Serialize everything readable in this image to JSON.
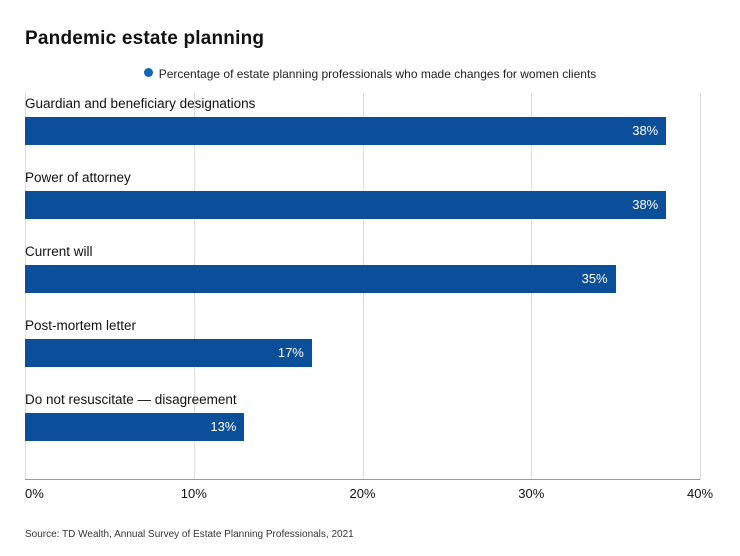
{
  "title": "Pandemic estate planning",
  "legend": {
    "label": "Percentage of estate planning professionals who made changes for women clients"
  },
  "source": "Source: TD Wealth, Annual Survey of Estate Planning Professionals, 2021",
  "colors": {
    "bar": "#0b4e9a",
    "legend_marker": "#1263b5",
    "grid": "#dcdcdc",
    "axis": "#9a9a9a"
  },
  "chart_data": {
    "type": "bar",
    "orientation": "horizontal",
    "title": "Pandemic estate planning",
    "categories": [
      "Guardian and beneficiary designations",
      "Power of attorney",
      "Current will",
      "Post-mortem letter",
      "Do not resuscitate — disagreement"
    ],
    "values": [
      38,
      38,
      35,
      17,
      13
    ],
    "value_labels": [
      "38%",
      "38%",
      "35%",
      "17%",
      "13%"
    ],
    "xlim": [
      0,
      40
    ],
    "xticks": [
      0,
      10,
      20,
      30,
      40
    ],
    "xtick_labels": [
      "0%",
      "10%",
      "20%",
      "30%",
      "40%"
    ],
    "grid": true,
    "legend_position": "top",
    "source": "Source: TD Wealth, Annual Survey of Estate Planning Professionals, 2021"
  }
}
